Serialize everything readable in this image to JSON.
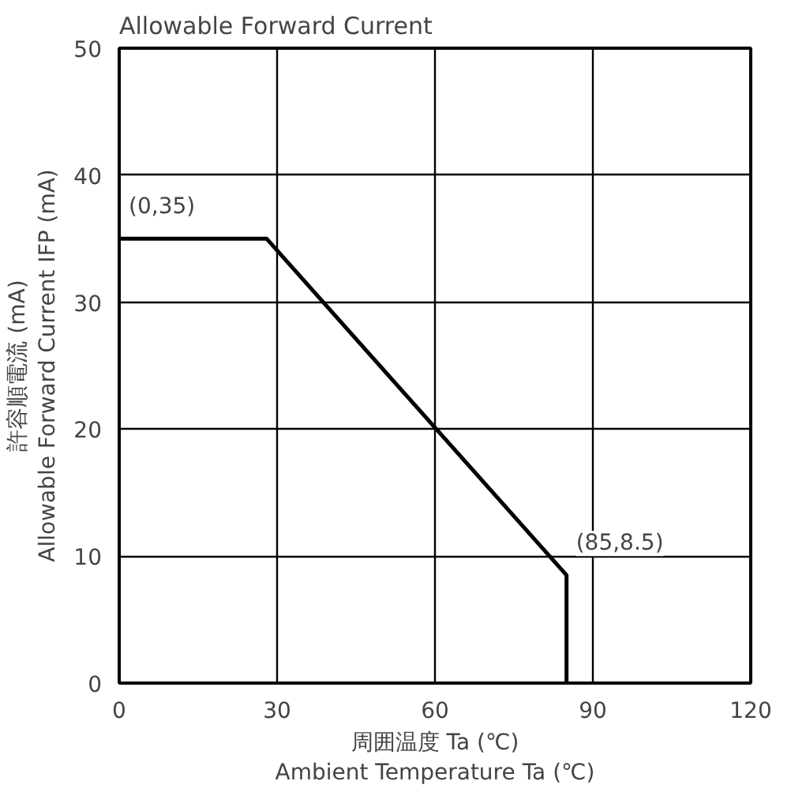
{
  "chart_data": {
    "type": "line",
    "title": "Allowable Forward Current",
    "xlabel": "周囲温度 Ta (℃)\nAmbient Temperature Ta (℃)",
    "ylabel": "許容順電流 (mA)\nAllowable Forward Current IFP (mA)",
    "x": [
      0,
      28,
      85,
      85
    ],
    "series": [
      {
        "color": "#000000",
        "values": [
          35,
          35,
          8.5,
          0
        ]
      }
    ],
    "xlim": [
      0,
      120
    ],
    "xticks": [
      0,
      30,
      60,
      90,
      120
    ],
    "ylim": [
      0,
      50
    ],
    "yticks": [
      0,
      10,
      20,
      30,
      40,
      50
    ],
    "grid": true,
    "marker": "none",
    "line_style": "solid",
    "annotations": [
      {
        "text": "(0,35)",
        "x": 0,
        "y": 35
      },
      {
        "text": "(85,8.5)",
        "x": 85,
        "y": 8.5
      }
    ]
  }
}
